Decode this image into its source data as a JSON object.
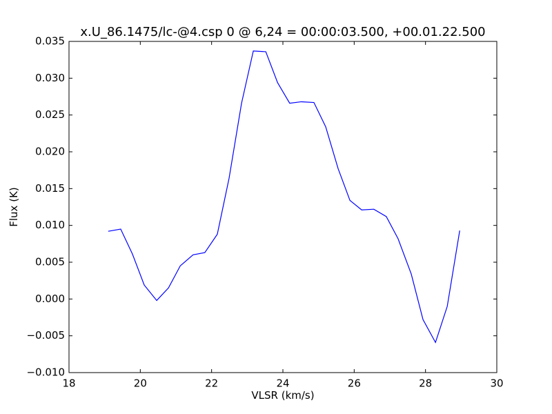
{
  "chart_data": {
    "type": "line",
    "title": "x.U_86.1475/lc-@4.csp 0 @ 6,24 = 00:00:03.500, +00.01.22.500",
    "x_label": "VLSR (km/s)",
    "y_label": "Flux (K)",
    "x": [
      19.1,
      19.45,
      19.78,
      20.11,
      20.46,
      20.79,
      21.12,
      21.48,
      21.81,
      22.16,
      22.49,
      22.84,
      23.17,
      23.52,
      23.85,
      24.19,
      24.52,
      24.87,
      25.2,
      25.55,
      25.88,
      26.21,
      26.55,
      26.9,
      27.23,
      27.6,
      27.93,
      28.28,
      28.61,
      28.96
    ],
    "series": [
      {
        "color": "#0000ff",
        "values": [
          0.0092,
          0.0095,
          0.0061,
          0.0019,
          -0.0002,
          0.0015,
          0.0045,
          0.006,
          0.0063,
          0.0088,
          0.0164,
          0.0266,
          0.0337,
          0.0336,
          0.0294,
          0.0266,
          0.0268,
          0.0267,
          0.0234,
          0.0177,
          0.0134,
          0.0121,
          0.0122,
          0.0112,
          0.0082,
          0.0034,
          -0.0028,
          -0.0059,
          -0.001,
          0.0093
        ]
      }
    ],
    "xlim": [
      18,
      30
    ],
    "xticks": [
      18,
      20,
      22,
      24,
      26,
      28,
      30
    ],
    "ylim": [
      -0.01,
      0.035
    ],
    "yticks": [
      {
        "value": -0.01,
        "label": "−0.010"
      },
      {
        "value": -0.005,
        "label": "−0.005"
      },
      {
        "value": 0,
        "label": "0.000"
      },
      0.005,
      {
        "value": 0.01,
        "label": "0.010"
      },
      0.015,
      {
        "value": 0.02,
        "label": "0.020"
      },
      0.025,
      {
        "value": 0.03,
        "label": "0.030"
      },
      0.035
    ],
    "grid": false
  }
}
